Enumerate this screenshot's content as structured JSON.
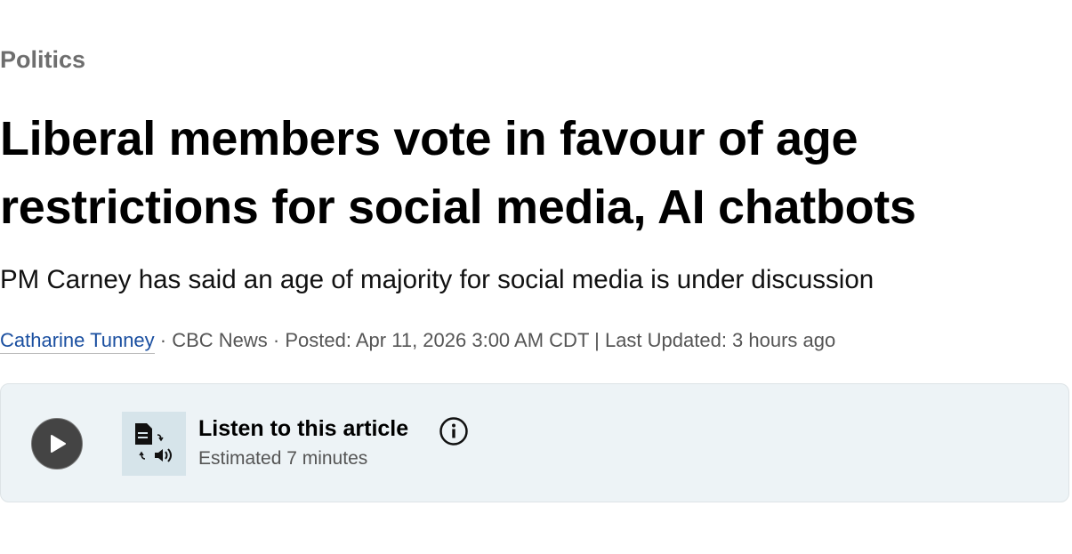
{
  "article": {
    "category": "Politics",
    "headline": "Liberal members vote in favour of age restrictions for social media, AI chatbots",
    "subtitle": "PM Carney has said an age of majority for social media is under discussion",
    "byline": {
      "author": "Catharine Tunney",
      "separator1": " · ",
      "source": "CBC News",
      "separator2": " · ",
      "posted": "Posted: Apr 11, 2026 3:00 AM CDT",
      "separator3": " | ",
      "updated": "Last Updated: 3 hours ago"
    }
  },
  "audio_player": {
    "title": "Listen to this article",
    "estimate": "Estimated 7 minutes",
    "icons": {
      "play": "play-icon",
      "tts": "text-to-speech-icon",
      "info": "info-icon"
    }
  },
  "colors": {
    "link": "#1a4fa0",
    "player_bg": "#edf3f6",
    "play_button": "#444444"
  }
}
